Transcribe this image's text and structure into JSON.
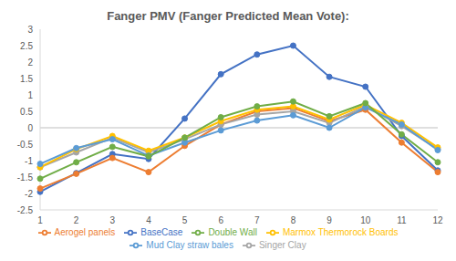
{
  "chart_data": {
    "type": "line",
    "title": "Fanger PMV (Fanger Predicted Mean Vote):",
    "categories": [
      "1",
      "2",
      "3",
      "4",
      "5",
      "6",
      "7",
      "8",
      "9",
      "10",
      "11",
      "12"
    ],
    "series": [
      {
        "name": "BaseCase",
        "color": "#4472c4",
        "marker": "circle",
        "values": [
          -1.95,
          -1.38,
          -0.8,
          -0.95,
          0.28,
          1.63,
          2.23,
          2.5,
          1.55,
          1.25,
          -0.25,
          -1.3
        ]
      },
      {
        "name": "Aerogel panels",
        "color": "#ed7d31",
        "marker": "circle",
        "values": [
          -1.85,
          -1.4,
          -0.92,
          -1.35,
          -0.55,
          0.1,
          0.5,
          0.6,
          0.2,
          0.55,
          -0.45,
          -1.35
        ]
      },
      {
        "name": "Singer Clay",
        "color": "#a5a5a5",
        "marker": "circle",
        "values": [
          -1.2,
          -0.75,
          -0.3,
          -0.75,
          -0.35,
          0.1,
          0.4,
          0.5,
          0.15,
          0.65,
          0.05,
          -0.65
        ]
      },
      {
        "name": "Marmox Thermorock Boards",
        "color": "#ffc000",
        "marker": "circle",
        "values": [
          -1.2,
          -0.65,
          -0.25,
          -0.7,
          -0.3,
          0.2,
          0.55,
          0.65,
          0.25,
          0.7,
          0.15,
          -0.6
        ]
      },
      {
        "name": "Mud Clay straw bales",
        "color": "#5b9bd5",
        "marker": "circle",
        "values": [
          -1.1,
          -0.62,
          -0.35,
          -0.85,
          -0.45,
          -0.08,
          0.22,
          0.38,
          0.0,
          0.62,
          0.1,
          -0.68
        ]
      },
      {
        "name": "Double Wall",
        "color": "#70ad47",
        "marker": "circle",
        "values": [
          -1.55,
          -1.05,
          -0.58,
          -0.87,
          -0.3,
          0.32,
          0.65,
          0.8,
          0.35,
          0.75,
          -0.2,
          -1.05
        ]
      }
    ],
    "ylim": [
      -2.5,
      3
    ],
    "yticks": [
      -2.5,
      -2,
      -1.5,
      -1,
      -0.5,
      0,
      0.5,
      1,
      1.5,
      2,
      2.5,
      3
    ],
    "grid": false,
    "legend": "bottom"
  }
}
